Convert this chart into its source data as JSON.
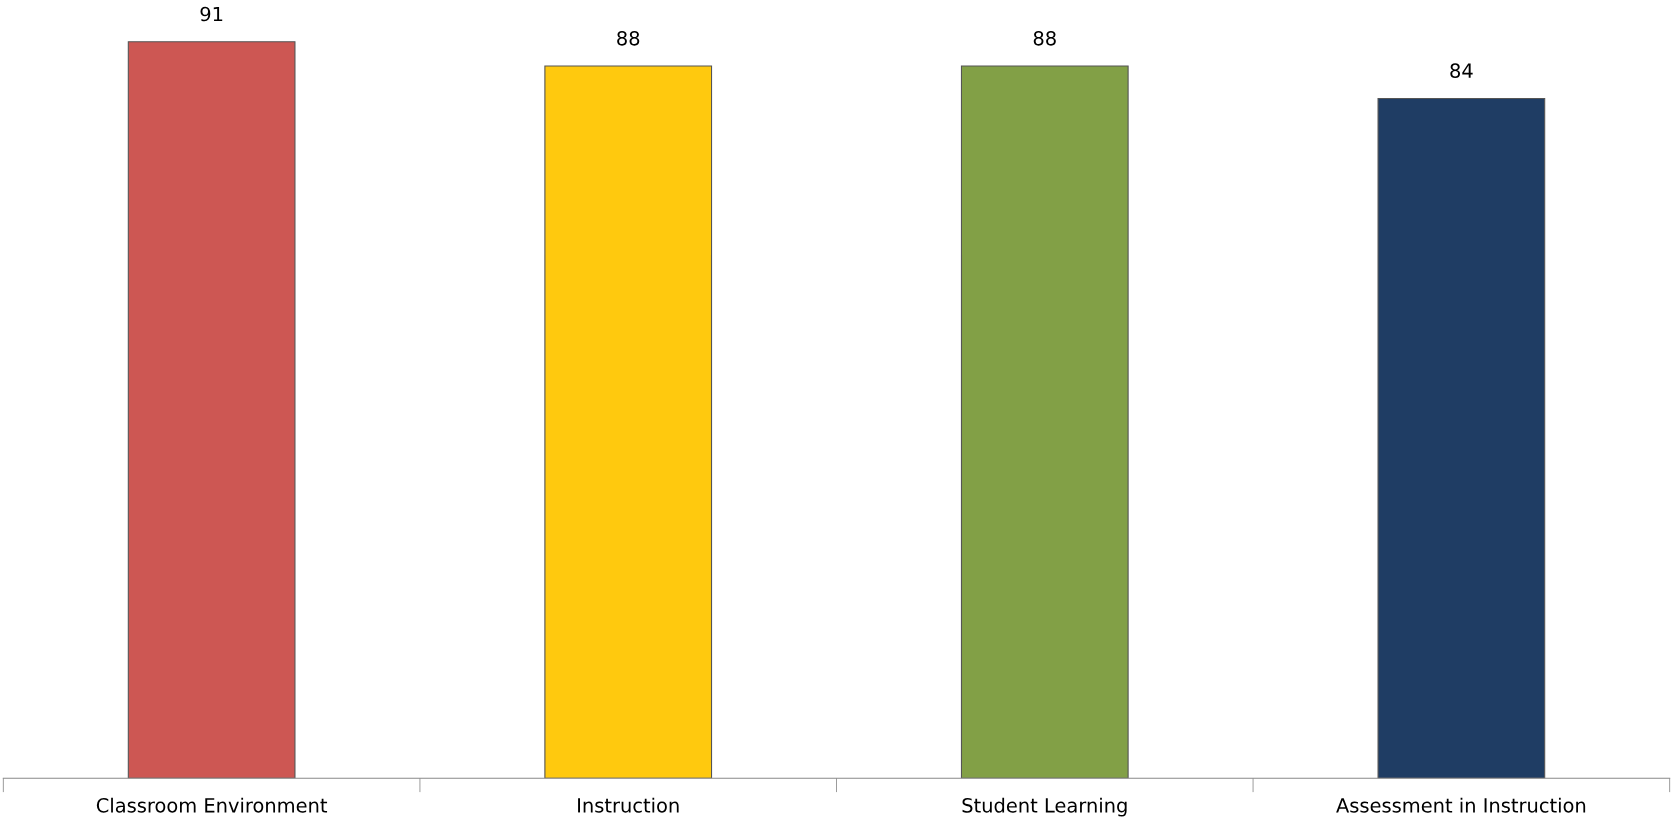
{
  "chart_data": {
    "type": "bar",
    "categories": [
      "Classroom Environment",
      "Instruction",
      "Student Learning",
      "Assessment in Instruction"
    ],
    "values": [
      91,
      88,
      88,
      84
    ],
    "colors": [
      "#cd5753",
      "#ffc90e",
      "#82a046",
      "#1f3d64"
    ],
    "data_labels": true,
    "tick_labels": "x",
    "grid": false,
    "legend": false
  }
}
